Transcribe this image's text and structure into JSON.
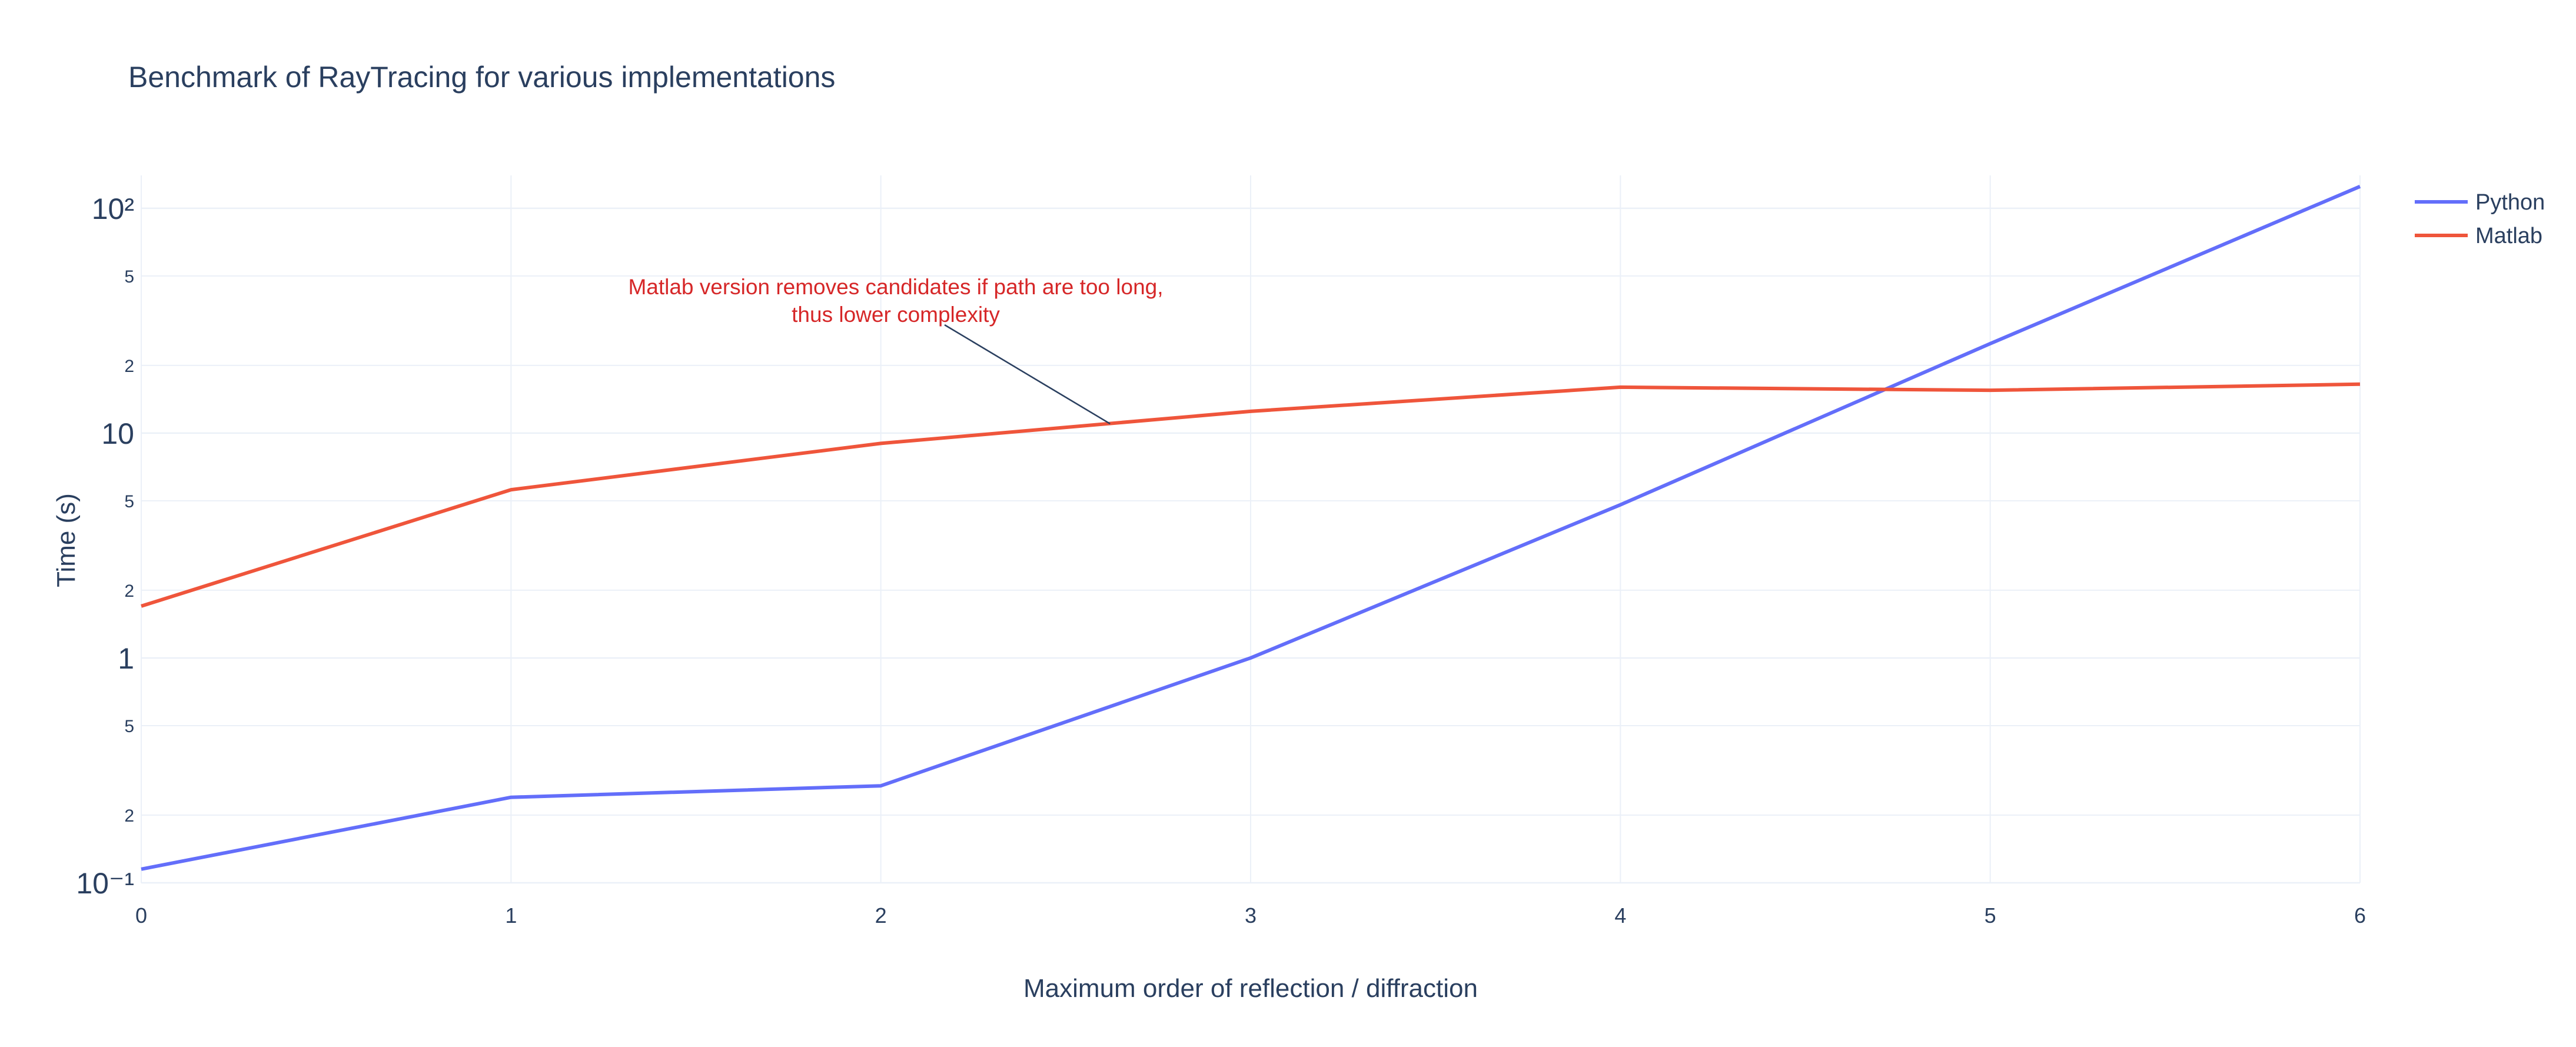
{
  "chart_data": {
    "type": "line",
    "title": "Benchmark of RayTracing for various implementations",
    "xlabel": "Maximum order of reflection / diffraction",
    "ylabel": "Time (s)",
    "x": [
      0,
      1,
      2,
      3,
      4,
      5,
      6
    ],
    "xlim": [
      0,
      6
    ],
    "ylim": [
      0.1,
      140
    ],
    "yscale": "log",
    "x_tick_labels": [
      "0",
      "1",
      "2",
      "3",
      "4",
      "5",
      "6"
    ],
    "y_major_tick_labels": [
      "10⁻¹",
      "1",
      "10",
      "10²"
    ],
    "y_minor_tick_labels": [
      "2",
      "5",
      "2",
      "5",
      "2",
      "5",
      "2",
      "5"
    ],
    "grid": true,
    "legend_position": "top-right",
    "series": [
      {
        "name": "Python",
        "color": "#636efa",
        "values": [
          0.115,
          0.24,
          0.27,
          1.0,
          4.8,
          25,
          125
        ]
      },
      {
        "name": "Matlab",
        "color": "#ef553b",
        "values": [
          1.7,
          5.6,
          9.0,
          12.5,
          16.0,
          15.5,
          16.5
        ]
      }
    ],
    "annotations": [
      {
        "text_lines": [
          "Matlab version removes candidates if path are too long,",
          "thus lower complexity"
        ],
        "x": 2.62,
        "y": 11.0,
        "color": "#d62728"
      }
    ]
  }
}
